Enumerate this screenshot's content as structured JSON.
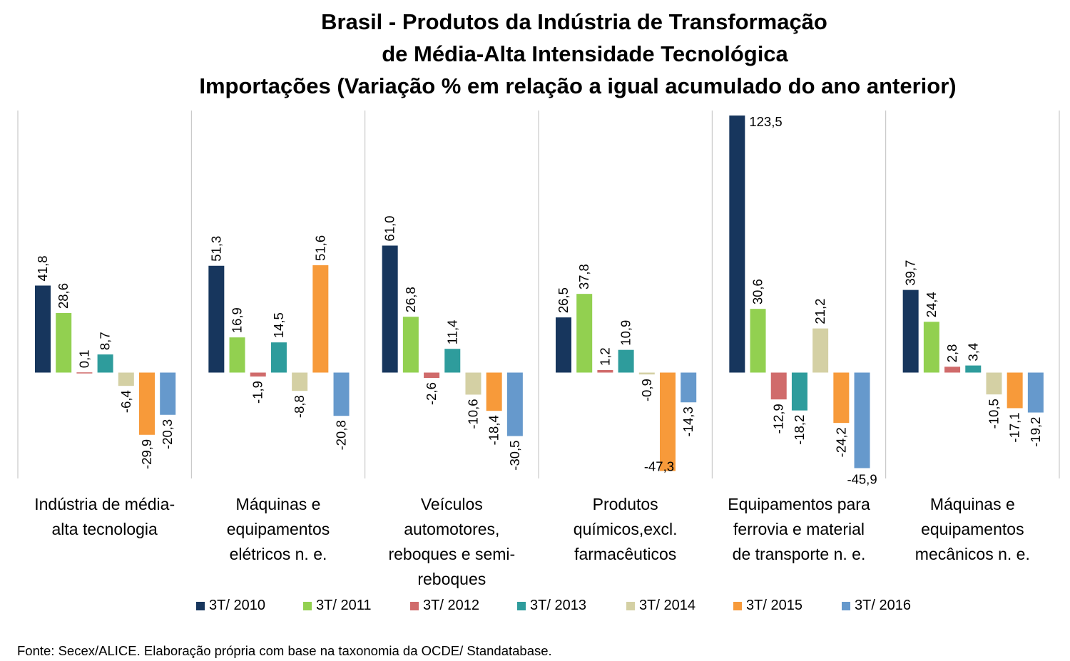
{
  "chart_data": {
    "type": "bar",
    "title_lines": [
      "Brasil - Produtos da Indústria de Transformação",
      "de Média-Alta Intensidade Tecnológica",
      "Importações (Variação % em relação a igual acumulado do ano anterior)"
    ],
    "categories": [
      [
        "Indústria de média-",
        "alta tecnologia"
      ],
      [
        "Máquinas e",
        "equipamentos",
        "elétricos n. e."
      ],
      [
        "Veículos",
        "automotores,",
        "reboques e semi-",
        "reboques"
      ],
      [
        "Produtos",
        "químicos,excl.",
        "farmacêuticos"
      ],
      [
        "Equipamentos para",
        "ferrovia e material",
        "de transporte n. e."
      ],
      [
        "Máquinas e",
        "equipamentos",
        "mecânicos  n. e."
      ]
    ],
    "series": [
      {
        "name": "3T/ 2010",
        "color": "#17365D",
        "values": [
          41.8,
          51.3,
          61.0,
          26.5,
          123.5,
          39.7
        ],
        "labels": [
          "41,8",
          "51,3",
          "61,0",
          "26,5",
          "123,5",
          "39,7"
        ]
      },
      {
        "name": "3T/ 2011",
        "color": "#92D050",
        "values": [
          28.6,
          16.9,
          26.8,
          37.8,
          30.6,
          24.4
        ],
        "labels": [
          "28,6",
          "16,9",
          "26,8",
          "37,8",
          "30,6",
          "24,4"
        ]
      },
      {
        "name": "3T/ 2012",
        "color": "#D06B6B",
        "values": [
          0.1,
          -1.9,
          -2.6,
          1.2,
          -12.9,
          2.8
        ],
        "labels": [
          "0,1",
          "-1,9",
          "-2,6",
          "1,2",
          "-12,9",
          "2,8"
        ]
      },
      {
        "name": "3T/ 2013",
        "color": "#2E9C9C",
        "values": [
          8.7,
          14.5,
          11.4,
          10.9,
          -18.2,
          3.4
        ],
        "labels": [
          "8,7",
          "14,5",
          "11,4",
          "10,9",
          "-18,2",
          "3,4"
        ]
      },
      {
        "name": "3T/ 2014",
        "color": "#D4D0A4",
        "values": [
          -6.4,
          -8.8,
          -10.6,
          -0.9,
          21.2,
          -10.5
        ],
        "labels": [
          "-6,4",
          "-8,8",
          "-10,6",
          "-0,9",
          "21,2",
          "-10,5"
        ]
      },
      {
        "name": "3T/ 2015",
        "color": "#F79A3A",
        "values": [
          -29.9,
          51.6,
          -18.4,
          -47.3,
          -24.2,
          -17.1
        ],
        "labels": [
          "-29,9",
          "51,6",
          "-18,4",
          "-47,3",
          "-24,2",
          "-17,1"
        ]
      },
      {
        "name": "3T/ 2016",
        "color": "#6699CC",
        "values": [
          -20.3,
          -20.8,
          -30.5,
          -14.3,
          -45.9,
          -19.2
        ],
        "labels": [
          "-20,3",
          "-20,8",
          "-30,5",
          "-14,3",
          "-45,9",
          "-19,2"
        ]
      }
    ],
    "ylim": [
      -47.3,
      123.5
    ],
    "grid": false,
    "legend_position": "bottom",
    "source": "Fonte: Secex/ALICE. Elaboração própria com base na taxonomia da OCDE/ Standatabase."
  }
}
